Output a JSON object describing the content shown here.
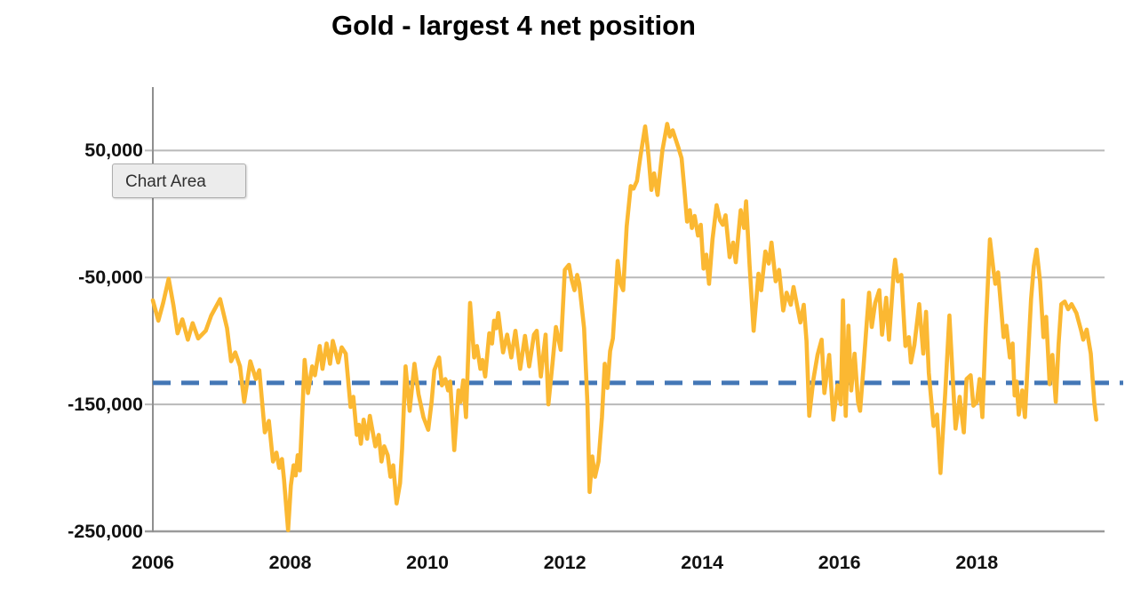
{
  "title": "Gold - largest 4 net position",
  "tooltip": {
    "label": "Chart Area"
  },
  "colors": {
    "background": "#FFFFFF",
    "series_line": "#FBB832",
    "reference_line": "#4377B6",
    "gridline": "#B9B9B9",
    "bottom_line": "#9B9B9B",
    "axis_line": "#8F8F8F",
    "title_text": "#000000",
    "tick_text": "#111111",
    "tooltip_bg": "#ECECEC",
    "tooltip_border": "#ADADAD",
    "tooltip_text": "#303030"
  },
  "chart_data": {
    "type": "line",
    "title": "Gold - largest 4 net position",
    "xlabel": "",
    "ylabel": "",
    "legend_position": "none",
    "grid": true,
    "x_axis": {
      "range": [
        2006,
        2019.86
      ],
      "ticks": [
        2006,
        2008,
        2010,
        2012,
        2014,
        2016,
        2018
      ],
      "tick_labels": [
        "2006",
        "2008",
        "2010",
        "2012",
        "2014",
        "2016",
        "2018"
      ]
    },
    "y_axis": {
      "range": [
        -250000,
        100000
      ],
      "ticks": [
        50000,
        -50000,
        -150000,
        -250000
      ],
      "tick_labels": [
        "50,000",
        "-50,000",
        "-150,000",
        "-250,000"
      ]
    },
    "reference_line": {
      "value": -133000,
      "style": "dashed",
      "color": "#4377B6"
    },
    "series": [
      {
        "name": "Gold - largest 4 net position",
        "color": "#FBB832",
        "points": [
          [
            2006.0,
            -68000
          ],
          [
            2006.08,
            -84000
          ],
          [
            2006.15,
            -70000
          ],
          [
            2006.23,
            -51000
          ],
          [
            2006.3,
            -72000
          ],
          [
            2006.36,
            -94000
          ],
          [
            2006.43,
            -83000
          ],
          [
            2006.51,
            -99000
          ],
          [
            2006.58,
            -86000
          ],
          [
            2006.66,
            -98000
          ],
          [
            2006.77,
            -92000
          ],
          [
            2006.85,
            -80000
          ],
          [
            2006.98,
            -67000
          ],
          [
            2007.08,
            -90000
          ],
          [
            2007.14,
            -116000
          ],
          [
            2007.2,
            -109000
          ],
          [
            2007.27,
            -120000
          ],
          [
            2007.33,
            -148000
          ],
          [
            2007.42,
            -116000
          ],
          [
            2007.5,
            -130000
          ],
          [
            2007.55,
            -123000
          ],
          [
            2007.63,
            -172000
          ],
          [
            2007.69,
            -163000
          ],
          [
            2007.75,
            -195000
          ],
          [
            2007.8,
            -188000
          ],
          [
            2007.84,
            -200000
          ],
          [
            2007.88,
            -193000
          ],
          [
            2007.91,
            -209000
          ],
          [
            2007.97,
            -249000
          ],
          [
            2008.01,
            -214000
          ],
          [
            2008.05,
            -198000
          ],
          [
            2008.08,
            -206000
          ],
          [
            2008.11,
            -190000
          ],
          [
            2008.14,
            -202000
          ],
          [
            2008.21,
            -115000
          ],
          [
            2008.26,
            -141000
          ],
          [
            2008.32,
            -120000
          ],
          [
            2008.36,
            -127000
          ],
          [
            2008.43,
            -104000
          ],
          [
            2008.47,
            -122000
          ],
          [
            2008.53,
            -102000
          ],
          [
            2008.58,
            -118000
          ],
          [
            2008.62,
            -100000
          ],
          [
            2008.66,
            -108000
          ],
          [
            2008.7,
            -117000
          ],
          [
            2008.75,
            -105000
          ],
          [
            2008.81,
            -110000
          ],
          [
            2008.88,
            -152000
          ],
          [
            2008.92,
            -144000
          ],
          [
            2008.97,
            -174000
          ],
          [
            2009.0,
            -166000
          ],
          [
            2009.03,
            -181000
          ],
          [
            2009.07,
            -162000
          ],
          [
            2009.12,
            -177000
          ],
          [
            2009.16,
            -159000
          ],
          [
            2009.24,
            -183000
          ],
          [
            2009.29,
            -174000
          ],
          [
            2009.33,
            -195000
          ],
          [
            2009.37,
            -183000
          ],
          [
            2009.42,
            -190000
          ],
          [
            2009.46,
            -207000
          ],
          [
            2009.5,
            -198000
          ],
          [
            2009.55,
            -228000
          ],
          [
            2009.6,
            -212000
          ],
          [
            2009.63,
            -185000
          ],
          [
            2009.68,
            -120000
          ],
          [
            2009.74,
            -155000
          ],
          [
            2009.81,
            -118000
          ],
          [
            2009.87,
            -142000
          ],
          [
            2009.94,
            -160000
          ],
          [
            2010.01,
            -170000
          ],
          [
            2010.06,
            -148000
          ],
          [
            2010.1,
            -123000
          ],
          [
            2010.17,
            -113000
          ],
          [
            2010.21,
            -135000
          ],
          [
            2010.26,
            -130000
          ],
          [
            2010.3,
            -139000
          ],
          [
            2010.33,
            -132000
          ],
          [
            2010.39,
            -186000
          ],
          [
            2010.45,
            -139000
          ],
          [
            2010.48,
            -148000
          ],
          [
            2010.52,
            -131000
          ],
          [
            2010.56,
            -160000
          ],
          [
            2010.62,
            -70000
          ],
          [
            2010.68,
            -113000
          ],
          [
            2010.72,
            -104000
          ],
          [
            2010.77,
            -122000
          ],
          [
            2010.8,
            -115000
          ],
          [
            2010.84,
            -128000
          ],
          [
            2010.9,
            -94000
          ],
          [
            2010.94,
            -102000
          ],
          [
            2010.97,
            -84000
          ],
          [
            2011.0,
            -90000
          ],
          [
            2011.03,
            -78000
          ],
          [
            2011.1,
            -109000
          ],
          [
            2011.16,
            -95000
          ],
          [
            2011.22,
            -113000
          ],
          [
            2011.28,
            -92000
          ],
          [
            2011.35,
            -122000
          ],
          [
            2011.42,
            -96000
          ],
          [
            2011.48,
            -120000
          ],
          [
            2011.55,
            -95000
          ],
          [
            2011.59,
            -92000
          ],
          [
            2011.65,
            -128000
          ],
          [
            2011.72,
            -95000
          ],
          [
            2011.76,
            -150000
          ],
          [
            2011.82,
            -118000
          ],
          [
            2011.87,
            -89000
          ],
          [
            2011.94,
            -107000
          ],
          [
            2012.0,
            -44000
          ],
          [
            2012.06,
            -40000
          ],
          [
            2012.1,
            -52000
          ],
          [
            2012.14,
            -60000
          ],
          [
            2012.18,
            -48000
          ],
          [
            2012.21,
            -55000
          ],
          [
            2012.28,
            -90000
          ],
          [
            2012.33,
            -150000
          ],
          [
            2012.36,
            -219000
          ],
          [
            2012.4,
            -191000
          ],
          [
            2012.44,
            -207000
          ],
          [
            2012.49,
            -195000
          ],
          [
            2012.54,
            -160000
          ],
          [
            2012.58,
            -118000
          ],
          [
            2012.62,
            -137000
          ],
          [
            2012.66,
            -108000
          ],
          [
            2012.7,
            -98000
          ],
          [
            2012.77,
            -37000
          ],
          [
            2012.81,
            -55000
          ],
          [
            2012.85,
            -60000
          ],
          [
            2012.9,
            -10000
          ],
          [
            2012.96,
            22000
          ],
          [
            2013.0,
            20000
          ],
          [
            2013.05,
            26000
          ],
          [
            2013.1,
            45000
          ],
          [
            2013.17,
            69000
          ],
          [
            2013.2,
            55000
          ],
          [
            2013.22,
            45000
          ],
          [
            2013.26,
            19000
          ],
          [
            2013.3,
            32000
          ],
          [
            2013.35,
            15000
          ],
          [
            2013.42,
            50000
          ],
          [
            2013.49,
            71000
          ],
          [
            2013.53,
            61000
          ],
          [
            2013.57,
            66000
          ],
          [
            2013.65,
            53000
          ],
          [
            2013.7,
            44000
          ],
          [
            2013.74,
            20000
          ],
          [
            2013.78,
            -6000
          ],
          [
            2013.82,
            3000
          ],
          [
            2013.85,
            -11000
          ],
          [
            2013.89,
            -1500
          ],
          [
            2013.94,
            -17000
          ],
          [
            2013.98,
            -8500
          ],
          [
            2014.02,
            -43000
          ],
          [
            2014.06,
            -32000
          ],
          [
            2014.1,
            -55000
          ],
          [
            2014.15,
            -20000
          ],
          [
            2014.21,
            7000
          ],
          [
            2014.26,
            -5000
          ],
          [
            2014.3,
            -8500
          ],
          [
            2014.34,
            -1000
          ],
          [
            2014.4,
            -34000
          ],
          [
            2014.45,
            -22500
          ],
          [
            2014.49,
            -38000
          ],
          [
            2014.56,
            3000
          ],
          [
            2014.61,
            -11000
          ],
          [
            2014.64,
            10000
          ],
          [
            2014.69,
            -40000
          ],
          [
            2014.75,
            -92000
          ],
          [
            2014.82,
            -47000
          ],
          [
            2014.86,
            -60000
          ],
          [
            2014.92,
            -29500
          ],
          [
            2014.97,
            -39000
          ],
          [
            2015.01,
            -22500
          ],
          [
            2015.07,
            -53000
          ],
          [
            2015.12,
            -44000
          ],
          [
            2015.18,
            -76000
          ],
          [
            2015.23,
            -62000
          ],
          [
            2015.29,
            -71500
          ],
          [
            2015.33,
            -57500
          ],
          [
            2015.43,
            -85500
          ],
          [
            2015.48,
            -71500
          ],
          [
            2015.52,
            -100000
          ],
          [
            2015.56,
            -159000
          ],
          [
            2015.62,
            -130000
          ],
          [
            2015.68,
            -111000
          ],
          [
            2015.74,
            -99000
          ],
          [
            2015.78,
            -141000
          ],
          [
            2015.85,
            -111000
          ],
          [
            2015.91,
            -162000
          ],
          [
            2015.97,
            -135000
          ],
          [
            2016.02,
            -150000
          ],
          [
            2016.05,
            -68000
          ],
          [
            2016.09,
            -159000
          ],
          [
            2016.13,
            -88000
          ],
          [
            2016.17,
            -139000
          ],
          [
            2016.22,
            -110000
          ],
          [
            2016.27,
            -148000
          ],
          [
            2016.3,
            -155000
          ],
          [
            2016.35,
            -120000
          ],
          [
            2016.39,
            -90000
          ],
          [
            2016.43,
            -62000
          ],
          [
            2016.47,
            -89000
          ],
          [
            2016.52,
            -70000
          ],
          [
            2016.58,
            -60000
          ],
          [
            2016.62,
            -95000
          ],
          [
            2016.68,
            -66000
          ],
          [
            2016.72,
            -99000
          ],
          [
            2016.79,
            -45000
          ],
          [
            2016.81,
            -36000
          ],
          [
            2016.85,
            -53000
          ],
          [
            2016.9,
            -48000
          ],
          [
            2016.96,
            -104000
          ],
          [
            2017.01,
            -97000
          ],
          [
            2017.04,
            -117000
          ],
          [
            2017.09,
            -103000
          ],
          [
            2017.16,
            -71000
          ],
          [
            2017.22,
            -110000
          ],
          [
            2017.26,
            -77000
          ],
          [
            2017.3,
            -125000
          ],
          [
            2017.37,
            -167000
          ],
          [
            2017.42,
            -158000
          ],
          [
            2017.47,
            -204000
          ],
          [
            2017.54,
            -141000
          ],
          [
            2017.6,
            -80000
          ],
          [
            2017.66,
            -140000
          ],
          [
            2017.69,
            -169000
          ],
          [
            2017.75,
            -144000
          ],
          [
            2017.81,
            -172000
          ],
          [
            2017.85,
            -130000
          ],
          [
            2017.91,
            -127000
          ],
          [
            2017.95,
            -151000
          ],
          [
            2018.0,
            -148000
          ],
          [
            2018.04,
            -130000
          ],
          [
            2018.08,
            -160000
          ],
          [
            2018.13,
            -90000
          ],
          [
            2018.19,
            -20000
          ],
          [
            2018.24,
            -43000
          ],
          [
            2018.27,
            -55000
          ],
          [
            2018.31,
            -46000
          ],
          [
            2018.39,
            -97000
          ],
          [
            2018.43,
            -88000
          ],
          [
            2018.48,
            -113000
          ],
          [
            2018.52,
            -102000
          ],
          [
            2018.55,
            -143000
          ],
          [
            2018.58,
            -132000
          ],
          [
            2018.61,
            -158000
          ],
          [
            2018.66,
            -139000
          ],
          [
            2018.7,
            -160000
          ],
          [
            2018.79,
            -67000
          ],
          [
            2018.83,
            -41000
          ],
          [
            2018.87,
            -28000
          ],
          [
            2018.92,
            -53000
          ],
          [
            2018.97,
            -97000
          ],
          [
            2019.01,
            -81000
          ],
          [
            2019.06,
            -134000
          ],
          [
            2019.1,
            -111000
          ],
          [
            2019.15,
            -148000
          ],
          [
            2019.19,
            -103000
          ],
          [
            2019.23,
            -71000
          ],
          [
            2019.28,
            -69000
          ],
          [
            2019.33,
            -75000
          ],
          [
            2019.38,
            -71000
          ],
          [
            2019.45,
            -78000
          ],
          [
            2019.52,
            -92000
          ],
          [
            2019.55,
            -99000
          ],
          [
            2019.6,
            -91000
          ],
          [
            2019.66,
            -110000
          ],
          [
            2019.71,
            -148000
          ],
          [
            2019.74,
            -162000
          ]
        ]
      }
    ]
  }
}
